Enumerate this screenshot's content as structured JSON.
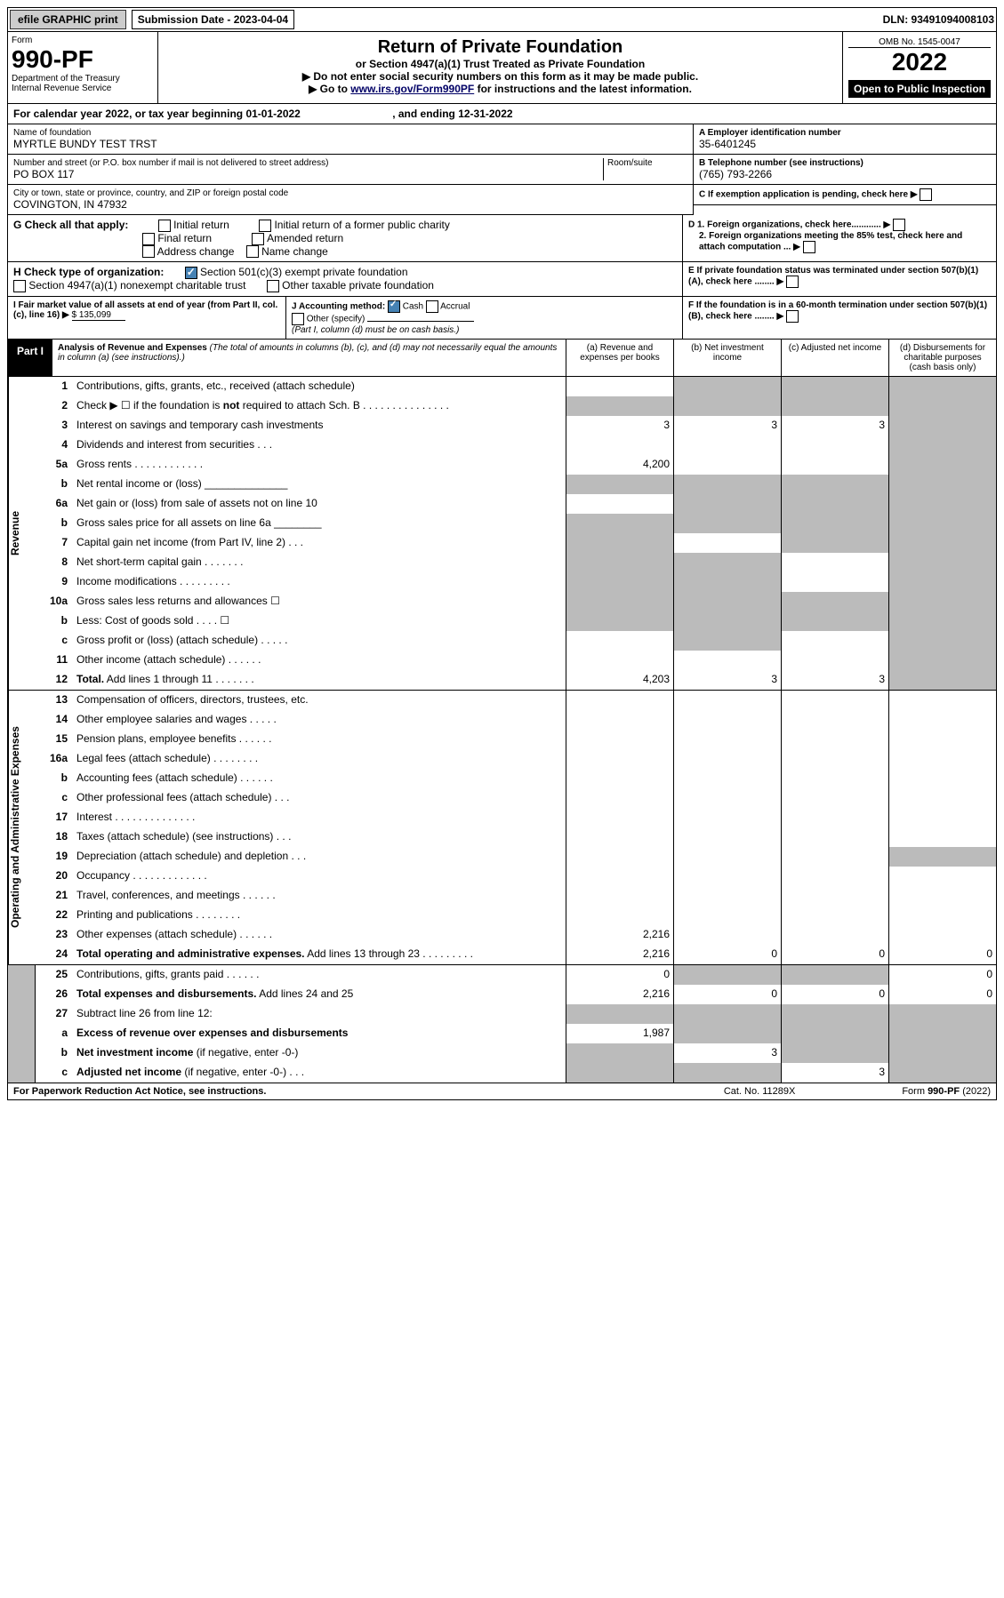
{
  "topbar": {
    "efile": "efile GRAPHIC print",
    "sub_label": "Submission Date - 2023-04-04",
    "dln": "DLN: 93491094008103"
  },
  "header": {
    "form": "Form",
    "form_no": "990-PF",
    "dept": "Department of the Treasury",
    "irs": "Internal Revenue Service",
    "title": "Return of Private Foundation",
    "sub": "or Section 4947(a)(1) Trust Treated as Private Foundation",
    "note1": "▶ Do not enter social security numbers on this form as it may be made public.",
    "note2": "▶ Go to ",
    "link": "www.irs.gov/Form990PF",
    "note3": " for instructions and the latest information.",
    "omb": "OMB No. 1545-0047",
    "year": "2022",
    "otp": "Open to Public Inspection"
  },
  "cal": {
    "pre": "For calendar year 2022, or tax year beginning ",
    "begin": "01-01-2022",
    "mid": ", and ending ",
    "end": "12-31-2022"
  },
  "name": {
    "lbl": "Name of foundation",
    "val": "MYRTLE BUNDY TEST TRST"
  },
  "ein": {
    "lbl": "A Employer identification number",
    "val": "35-6401245"
  },
  "addr": {
    "lbl": "Number and street (or P.O. box number if mail is not delivered to street address)",
    "room": "Room/suite",
    "val": "PO BOX 117"
  },
  "tel": {
    "lbl": "B Telephone number (see instructions)",
    "val": "(765) 793-2266"
  },
  "city": {
    "lbl": "City or town, state or province, country, and ZIP or foreign postal code",
    "val": "COVINGTON, IN  47932"
  },
  "c": {
    "txt": "C If exemption application is pending, check here"
  },
  "g": {
    "lbl": "G Check all that apply:",
    "o1": "Initial return",
    "o2": "Final return",
    "o3": "Address change",
    "o4": "Initial return of a former public charity",
    "o5": "Amended return",
    "o6": "Name change"
  },
  "d": {
    "d1": "D 1. Foreign organizations, check here............",
    "d2": "2. Foreign organizations meeting the 85% test, check here and attach computation ...",
    "e": "E  If private foundation status was terminated under section 507(b)(1)(A), check here ........"
  },
  "h": {
    "lbl": "H Check type of organization:",
    "o1": "Section 501(c)(3) exempt private foundation",
    "o2": "Section 4947(a)(1) nonexempt charitable trust",
    "o3": "Other taxable private foundation"
  },
  "i": {
    "lbl": "I Fair market value of all assets at end of year (from Part II, col. (c), line 16) ▶",
    "amt": "$  135,099"
  },
  "j": {
    "lbl": "J Accounting method:",
    "o1": "Cash",
    "o2": "Accrual",
    "o3": "Other (specify)",
    "note": "(Part I, column (d) must be on cash basis.)"
  },
  "f": {
    "txt": "F  If the foundation is in a 60-month termination under section 507(b)(1)(B), check here ........"
  },
  "part1": {
    "lbl": "Part I",
    "title": "Analysis of Revenue and Expenses",
    "note": "(The total of amounts in columns (b), (c), and (d) may not necessarily equal the amounts in column (a) (see instructions).)",
    "ca": "(a)  Revenue and expenses per books",
    "cb": "(b)  Net investment income",
    "cc": "(c)  Adjusted net income",
    "cd": "(d)  Disbursements for charitable purposes (cash basis only)"
  },
  "rev_lbl": "Revenue",
  "exp_lbl": "Operating and Administrative Expenses",
  "rows": [
    {
      "n": "1",
      "t": "Contributions, gifts, grants, etc., received (attach schedule)",
      "a": "",
      "b": "sh",
      "c": "sh",
      "d": "sh"
    },
    {
      "n": "2",
      "t": "Check ▶ ☐ if the foundation is <b>not</b> required to attach Sch. B   .   .   .   .   .   .   .   .   .   .   .   .   .   .   .",
      "a": "sh",
      "b": "sh",
      "c": "sh",
      "d": "sh"
    },
    {
      "n": "3",
      "t": "Interest on savings and temporary cash investments",
      "a": "3",
      "b": "3",
      "c": "3",
      "d": "sh"
    },
    {
      "n": "4",
      "t": "Dividends and interest from securities    .    .    .",
      "a": "",
      "b": "",
      "c": "",
      "d": "sh"
    },
    {
      "n": "5a",
      "t": "Gross rents   .   .   .   .   .   .   .   .   .   .   .   .",
      "a": "4,200",
      "b": "",
      "c": "",
      "d": "sh"
    },
    {
      "n": "b",
      "t": "Net rental income or (loss)  ______________",
      "a": "sh",
      "b": "sh",
      "c": "sh",
      "d": "sh"
    },
    {
      "n": "6a",
      "t": "Net gain or (loss) from sale of assets not on line 10",
      "a": "",
      "b": "sh",
      "c": "sh",
      "d": "sh"
    },
    {
      "n": "b",
      "t": "Gross sales price for all assets on line 6a ________",
      "a": "sh",
      "b": "sh",
      "c": "sh",
      "d": "sh"
    },
    {
      "n": "7",
      "t": "Capital gain net income (from Part IV, line 2)   .   .   .",
      "a": "sh",
      "b": "",
      "c": "sh",
      "d": "sh"
    },
    {
      "n": "8",
      "t": "Net short-term capital gain  .   .   .   .   .   .   .",
      "a": "sh",
      "b": "sh",
      "c": "",
      "d": "sh"
    },
    {
      "n": "9",
      "t": "Income modifications  .   .   .   .   .   .   .   .   .",
      "a": "sh",
      "b": "sh",
      "c": "",
      "d": "sh"
    },
    {
      "n": "10a",
      "t": "Gross sales less returns and allowances  ☐",
      "a": "sh",
      "b": "sh",
      "c": "sh",
      "d": "sh"
    },
    {
      "n": "b",
      "t": "Less: Cost of goods sold   .   .   .   .  ☐",
      "a": "sh",
      "b": "sh",
      "c": "sh",
      "d": "sh"
    },
    {
      "n": "c",
      "t": "Gross profit or (loss) (attach schedule)   .   .   .   .   .",
      "a": "",
      "b": "sh",
      "c": "",
      "d": "sh"
    },
    {
      "n": "11",
      "t": "Other income (attach schedule)   .   .   .   .   .   .",
      "a": "",
      "b": "",
      "c": "",
      "d": "sh"
    },
    {
      "n": "12",
      "t": "<b>Total.</b> Add lines 1 through 11   .   .   .   .   .   .   .",
      "a": "4,203",
      "b": "3",
      "c": "3",
      "d": "sh"
    },
    {
      "n": "13",
      "t": "Compensation of officers, directors, trustees, etc.",
      "a": "",
      "b": "",
      "c": "",
      "d": ""
    },
    {
      "n": "14",
      "t": "Other employee salaries and wages   .   .   .   .   .",
      "a": "",
      "b": "",
      "c": "",
      "d": ""
    },
    {
      "n": "15",
      "t": "Pension plans, employee benefits  .   .   .   .   .   .",
      "a": "",
      "b": "",
      "c": "",
      "d": ""
    },
    {
      "n": "16a",
      "t": "Legal fees (attach schedule)  .   .   .   .   .   .   .   .",
      "a": "",
      "b": "",
      "c": "",
      "d": ""
    },
    {
      "n": "b",
      "t": "Accounting fees (attach schedule)  .   .   .   .   .   .",
      "a": "",
      "b": "",
      "c": "",
      "d": ""
    },
    {
      "n": "c",
      "t": "Other professional fees (attach schedule)   .   .   .",
      "a": "",
      "b": "",
      "c": "",
      "d": ""
    },
    {
      "n": "17",
      "t": "Interest  .   .   .   .   .   .   .   .   .   .   .   .   .   .",
      "a": "",
      "b": "",
      "c": "",
      "d": ""
    },
    {
      "n": "18",
      "t": "Taxes (attach schedule) (see instructions)    .   .   .",
      "a": "",
      "b": "",
      "c": "",
      "d": ""
    },
    {
      "n": "19",
      "t": "Depreciation (attach schedule) and depletion   .   .   .",
      "a": "",
      "b": "",
      "c": "",
      "d": "sh"
    },
    {
      "n": "20",
      "t": "Occupancy  .   .   .   .   .   .   .   .   .   .   .   .   .",
      "a": "",
      "b": "",
      "c": "",
      "d": ""
    },
    {
      "n": "21",
      "t": "Travel, conferences, and meetings  .   .   .   .   .   .",
      "a": "",
      "b": "",
      "c": "",
      "d": ""
    },
    {
      "n": "22",
      "t": "Printing and publications  .   .   .   .   .   .   .   .",
      "a": "",
      "b": "",
      "c": "",
      "d": ""
    },
    {
      "n": "23",
      "t": "Other expenses (attach schedule)  .   .   .   .   .   .",
      "a": "2,216",
      "b": "",
      "c": "",
      "d": ""
    },
    {
      "n": "24",
      "t": "<b>Total operating and administrative expenses.</b> Add lines 13 through 23   .   .   .   .   .   .   .   .   .",
      "a": "2,216",
      "b": "0",
      "c": "0",
      "d": "0"
    },
    {
      "n": "25",
      "t": "Contributions, gifts, grants paid    .   .   .   .   .   .",
      "a": "0",
      "b": "sh",
      "c": "sh",
      "d": "0"
    },
    {
      "n": "26",
      "t": "<b>Total expenses and disbursements.</b> Add lines 24 and 25",
      "a": "2,216",
      "b": "0",
      "c": "0",
      "d": "0"
    },
    {
      "n": "27",
      "t": "Subtract line 26 from line 12:",
      "a": "sh",
      "b": "sh",
      "c": "sh",
      "d": "sh"
    },
    {
      "n": "a",
      "t": "<b>Excess of revenue over expenses and disbursements</b>",
      "a": "1,987",
      "b": "sh",
      "c": "sh",
      "d": "sh"
    },
    {
      "n": "b",
      "t": "<b>Net investment income</b> (if negative, enter -0-)",
      "a": "sh",
      "b": "3",
      "c": "sh",
      "d": "sh"
    },
    {
      "n": "c",
      "t": "<b>Adjusted net income</b> (if negative, enter -0-)   .   .   .",
      "a": "sh",
      "b": "sh",
      "c": "3",
      "d": "sh"
    }
  ],
  "footer": {
    "l": "For Paperwork Reduction Act Notice, see instructions.",
    "m": "Cat. No. 11289X",
    "r": "Form 990-PF (2022)"
  }
}
